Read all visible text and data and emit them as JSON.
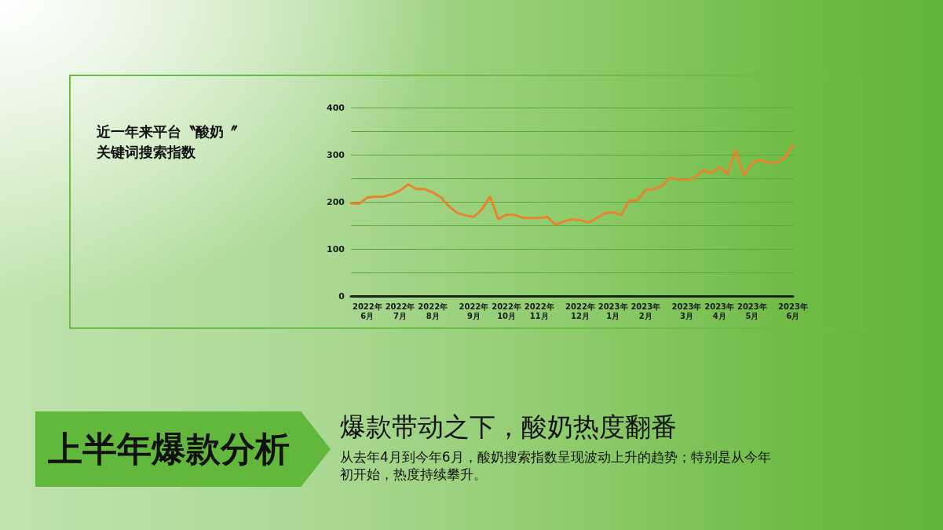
{
  "chart_data": {
    "type": "line",
    "title": "近一年来平台〝酸奶〞关键词搜索指数",
    "annotations": [
      "上半年爆款分析",
      "爆款带动之下，酸奶热度翻番",
      "从去年4月到今年6月，酸奶搜索指数呈现波动上升的趋势；特别是从今年初开始，热度持续攀升。"
    ],
    "categories": [
      null,
      null,
      "2022年\n6月",
      null,
      null,
      null,
      "2022年\n7月",
      null,
      null,
      null,
      "2022年\n8月",
      null,
      null,
      null,
      null,
      "2022年\n9月",
      null,
      null,
      null,
      "2022年\n10月",
      null,
      null,
      null,
      "2022年\n11月",
      null,
      null,
      null,
      null,
      "2022年\n12月",
      null,
      null,
      null,
      "2023年\n1月",
      null,
      null,
      null,
      "2023年\n2月",
      null,
      null,
      null,
      null,
      "2023年\n3月",
      null,
      null,
      null,
      "2023年\n4月",
      null,
      null,
      null,
      "2023年\n5月",
      null,
      null,
      null,
      null,
      "2023年\n6月"
    ],
    "series": [
      {
        "color": "#e8842c",
        "values": [
          197,
          196,
          209,
          211,
          211,
          216,
          224,
          237,
          227,
          227,
          220,
          209,
          190,
          176,
          171,
          168,
          184,
          211,
          163,
          173,
          172,
          166,
          166,
          166,
          168,
          151,
          158,
          163,
          161,
          156,
          165,
          176,
          178,
          172,
          203,
          203,
          225,
          227,
          234,
          251,
          247,
          246,
          251,
          267,
          261,
          274,
          259,
          309,
          256,
          282,
          289,
          283,
          283,
          294,
          320
        ]
      }
    ],
    "ylim": [
      0,
      400
    ],
    "yticks": [
      0,
      {
        "value": 50,
        "label": null
      },
      100,
      {
        "value": 150,
        "label": null
      },
      200,
      {
        "value": 250,
        "label": null
      },
      300,
      {
        "value": 350,
        "label": null
      },
      400
    ],
    "grid": "y",
    "marker": "none",
    "line_style": "solid"
  }
}
